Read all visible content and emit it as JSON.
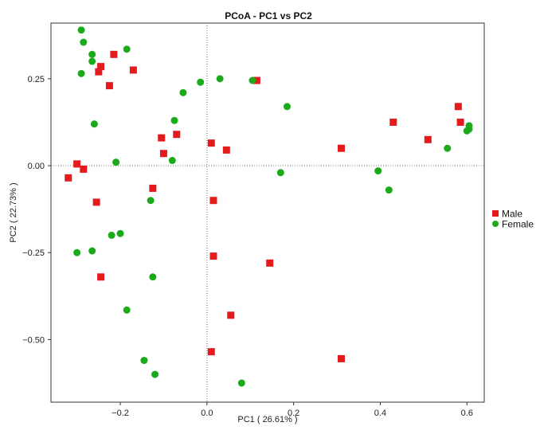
{
  "chart_data": {
    "type": "scatter",
    "title": "PCoA - PC1 vs PC2",
    "xlabel": "PC1 ( 26.61% )",
    "ylabel": "PC2 ( 22.73% )",
    "xlim": [
      -0.36,
      0.64
    ],
    "ylim": [
      -0.68,
      0.41
    ],
    "xticks": [
      -0.2,
      0.0,
      0.2,
      0.4,
      0.6
    ],
    "xtick_labels": [
      "−0.2",
      "0.0",
      "0.2",
      "0.4",
      "0.6"
    ],
    "yticks": [
      -0.5,
      -0.25,
      0.0,
      0.25
    ],
    "ytick_labels": [
      "−0.50",
      "−0.25",
      "0.00",
      "0.25"
    ],
    "grid": false,
    "reference_lines": {
      "x": 0,
      "y": 0,
      "style": "dotted"
    },
    "legend_position": "right",
    "series": [
      {
        "name": "Male",
        "color": "#e41a1c",
        "marker": "square",
        "points": [
          [
            -0.215,
            0.32
          ],
          [
            -0.245,
            0.285
          ],
          [
            -0.25,
            0.27
          ],
          [
            -0.17,
            0.275
          ],
          [
            -0.225,
            0.23
          ],
          [
            0.115,
            0.245
          ],
          [
            -0.105,
            0.08
          ],
          [
            -0.07,
            0.09
          ],
          [
            -0.1,
            0.035
          ],
          [
            0.01,
            0.065
          ],
          [
            0.045,
            0.045
          ],
          [
            -0.3,
            0.005
          ],
          [
            -0.285,
            -0.01
          ],
          [
            -0.32,
            -0.035
          ],
          [
            -0.125,
            -0.065
          ],
          [
            -0.255,
            -0.105
          ],
          [
            0.015,
            -0.1
          ],
          [
            0.015,
            -0.26
          ],
          [
            -0.245,
            -0.32
          ],
          [
            0.145,
            -0.28
          ],
          [
            0.055,
            -0.43
          ],
          [
            0.01,
            -0.535
          ],
          [
            0.31,
            0.05
          ],
          [
            0.31,
            -0.555
          ],
          [
            0.43,
            0.125
          ],
          [
            0.51,
            0.075
          ],
          [
            0.58,
            0.17
          ],
          [
            0.585,
            0.125
          ]
        ]
      },
      {
        "name": "Female",
        "color": "#1aaa1a",
        "marker": "circle",
        "points": [
          [
            -0.29,
            0.39
          ],
          [
            -0.285,
            0.355
          ],
          [
            -0.265,
            0.32
          ],
          [
            -0.265,
            0.3
          ],
          [
            -0.29,
            0.265
          ],
          [
            -0.185,
            0.335
          ],
          [
            -0.26,
            0.12
          ],
          [
            -0.21,
            0.01
          ],
          [
            -0.055,
            0.21
          ],
          [
            -0.015,
            0.24
          ],
          [
            0.03,
            0.25
          ],
          [
            0.105,
            0.245
          ],
          [
            0.185,
            0.17
          ],
          [
            -0.075,
            0.13
          ],
          [
            -0.08,
            0.015
          ],
          [
            0.17,
            -0.02
          ],
          [
            -0.13,
            -0.1
          ],
          [
            -0.2,
            -0.195
          ],
          [
            -0.22,
            -0.2
          ],
          [
            -0.265,
            -0.245
          ],
          [
            -0.3,
            -0.25
          ],
          [
            -0.125,
            -0.32
          ],
          [
            -0.185,
            -0.415
          ],
          [
            -0.145,
            -0.56
          ],
          [
            -0.12,
            -0.6
          ],
          [
            0.08,
            -0.625
          ],
          [
            0.395,
            -0.015
          ],
          [
            0.42,
            -0.07
          ],
          [
            0.555,
            0.05
          ],
          [
            0.6,
            0.1
          ],
          [
            0.605,
            0.115
          ],
          [
            0.605,
            0.105
          ]
        ]
      }
    ]
  }
}
